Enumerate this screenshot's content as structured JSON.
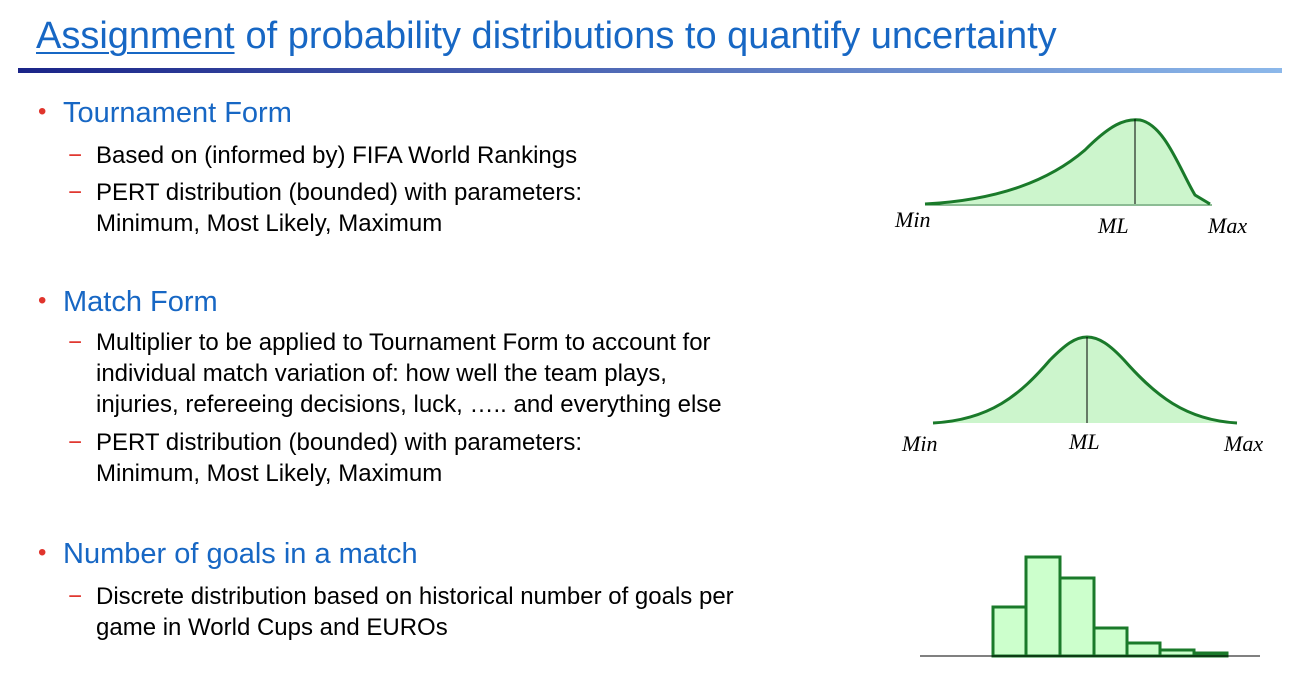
{
  "title": {
    "underlined": "Assignment",
    "rest": "of probability distributions to quantify uncertainty"
  },
  "sections": [
    {
      "heading": "Tournament Form",
      "items": [
        [
          "Based on (informed by) FIFA World Rankings"
        ],
        [
          "PERT distribution (bounded) with parameters:",
          "Minimum, Most Likely, Maximum"
        ]
      ]
    },
    {
      "heading": "Match Form",
      "items": [
        [
          "Multiplier to be applied to Tournament Form to account for",
          "individual match variation of: how well the team plays,",
          "injuries, refereeing decisions, luck, ….. and everything else"
        ],
        [
          "PERT distribution (bounded) with parameters:",
          "Minimum, Most Likely, Maximum"
        ]
      ]
    },
    {
      "heading": "Number of goals in a match",
      "items": [
        [
          "Discrete distribution based on historical number of goals per",
          "game in World Cups and EUROs"
        ]
      ]
    }
  ],
  "diagrams": [
    {
      "labels": [
        "Min",
        "ML",
        "Max"
      ]
    },
    {
      "labels": [
        "Min",
        "ML",
        "Max"
      ]
    }
  ]
}
